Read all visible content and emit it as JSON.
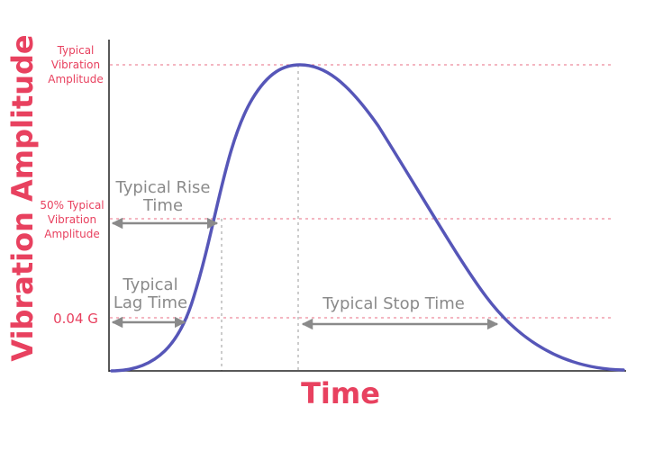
{
  "colors": {
    "accent": "#e8415f",
    "curve": "#5656b8",
    "annotation": "#8a8a8a",
    "axis": "#222222",
    "guide": "#ee8a9c"
  },
  "axes": {
    "y_title": "Vibration Amplitude",
    "x_title": "Time"
  },
  "levels": {
    "peak": {
      "line1": "Typical",
      "line2": "Vibration",
      "line3": "Amplitude"
    },
    "half": {
      "line1": "50% Typical",
      "line2": "Vibration",
      "line3": "Amplitude"
    },
    "threshold": {
      "text": "0.04 G"
    }
  },
  "annotations": {
    "rise": {
      "line1": "Typical Rise",
      "line2": "Time"
    },
    "lag": {
      "line1": "Typical",
      "line2": "Lag Time"
    },
    "stop": {
      "text": "Typical Stop Time"
    }
  }
}
